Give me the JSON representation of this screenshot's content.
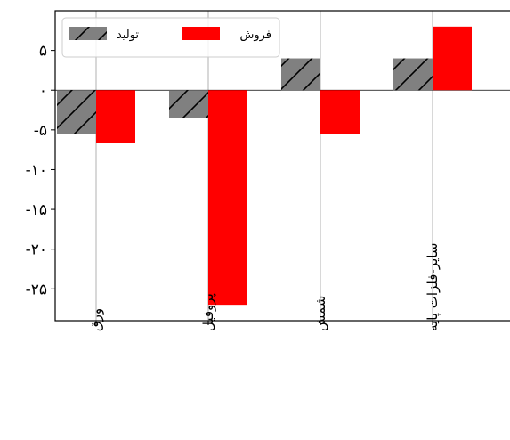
{
  "chart_data": {
    "type": "bar",
    "categories": [
      "ورق",
      "پروفیل",
      "شمش",
      "سایر-فلزات پایه"
    ],
    "series": [
      {
        "name": "تولید",
        "values": [
          -5.5,
          -3.5,
          4,
          4
        ],
        "color": "#808080",
        "hatch": "diagonal"
      },
      {
        "name": "فروش",
        "values": [
          -6.6,
          -27,
          -5.5,
          8
        ],
        "color": "#ff0000"
      }
    ],
    "ylim": [
      -29,
      10
    ],
    "yticks": [
      -25,
      -20,
      -15,
      -10,
      -5,
      0,
      5
    ],
    "ytick_labels": [
      "-۲۵",
      "-۲۰",
      "-۱۵",
      "-۱۰",
      "-۵",
      "۰",
      "۵"
    ],
    "grid": {
      "x": true,
      "y": false
    },
    "zero_line": true,
    "legend_position": "top-left",
    "title": "",
    "xlabel": "",
    "ylabel": ""
  }
}
